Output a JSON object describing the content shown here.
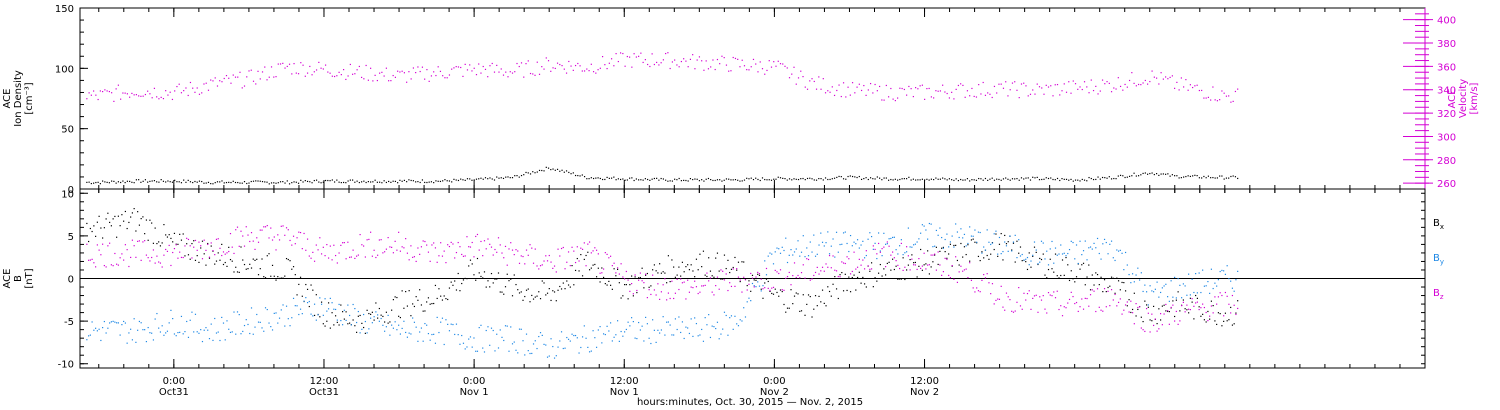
{
  "colors": {
    "black": "#000000",
    "magenta": "#d400d4",
    "blue": "#1e88e5",
    "background": "#ffffff"
  },
  "chart_data": [
    {
      "type": "scatter",
      "panel": "top",
      "ylabel_left": [
        "ACE",
        "Ion Density",
        "[cm⁻³]"
      ],
      "ylabel_right": [
        "ACE",
        "Velocity",
        "[km/s]"
      ],
      "ylim_left": [
        0,
        150
      ],
      "ylim_right": [
        255,
        410
      ],
      "yticks_left": [
        "0",
        "50",
        "100",
        "150"
      ],
      "yticks_right": [
        "260",
        "280",
        "300",
        "320",
        "340",
        "360",
        "380",
        "400"
      ],
      "series": [
        {
          "name": "Ion Density",
          "axis": "left",
          "color": "#000000",
          "x": [
            -6,
            -3,
            0,
            3,
            6,
            9,
            12,
            15,
            18,
            21,
            24,
            27,
            30,
            33,
            36,
            39,
            42,
            45,
            48,
            51,
            54,
            57,
            60,
            63,
            66,
            69,
            72,
            75,
            78,
            80,
            84
          ],
          "y": [
            6,
            7,
            7,
            6,
            6,
            6,
            7,
            7,
            7,
            7,
            8,
            10,
            18,
            10,
            9,
            8,
            8,
            8,
            9,
            9,
            10,
            9,
            9,
            8,
            9,
            9,
            8,
            10,
            14,
            11,
            10
          ]
        },
        {
          "name": "Velocity",
          "axis": "right",
          "color": "#d400d4",
          "x": [
            -6,
            -3,
            0,
            3,
            6,
            9,
            12,
            15,
            18,
            21,
            24,
            27,
            30,
            33,
            36,
            39,
            42,
            45,
            48,
            51,
            54,
            57,
            60,
            63,
            66,
            69,
            72,
            75,
            78,
            80,
            84
          ],
          "y": [
            335,
            340,
            338,
            345,
            350,
            360,
            358,
            355,
            352,
            355,
            358,
            356,
            362,
            360,
            366,
            366,
            364,
            362,
            360,
            346,
            340,
            338,
            338,
            340,
            341,
            340,
            342,
            345,
            352,
            345,
            335
          ]
        }
      ]
    },
    {
      "type": "scatter",
      "panel": "bottom",
      "ylabel_left": [
        "ACE",
        "B",
        "[nT]"
      ],
      "ylim": [
        -10.5,
        10.5
      ],
      "yticks": [
        "-10",
        "-5",
        "0",
        "5",
        "10"
      ],
      "legend": [
        "Bx",
        "By",
        "Bz"
      ],
      "series": [
        {
          "name": "Bx",
          "color": "#000000",
          "x": [
            -6,
            -3,
            0,
            3,
            6,
            9,
            12,
            15,
            18,
            21,
            24,
            27,
            30,
            33,
            36,
            39,
            42,
            45,
            48,
            51,
            54,
            57,
            60,
            63,
            66,
            69,
            72,
            75,
            78,
            80,
            84
          ],
          "y": [
            6,
            7,
            4,
            3,
            2,
            1,
            -4,
            -5,
            -3,
            -2,
            1,
            -1,
            -2,
            2,
            -1,
            1,
            2,
            1,
            -2,
            -3,
            0,
            1,
            2,
            3,
            4,
            2,
            1,
            -1,
            -4,
            -3,
            -4
          ]
        },
        {
          "name": "By",
          "color": "#1e88e5",
          "x": [
            -6,
            -3,
            0,
            3,
            6,
            9,
            12,
            15,
            18,
            21,
            24,
            27,
            30,
            33,
            36,
            39,
            42,
            45,
            48,
            51,
            54,
            57,
            60,
            63,
            66,
            69,
            72,
            75,
            78,
            80,
            84
          ],
          "y": [
            -6,
            -6,
            -5,
            -6,
            -5,
            -4,
            -3,
            -5,
            -6,
            -6,
            -7,
            -7,
            -8,
            -7,
            -6,
            -6,
            -6,
            -5,
            3,
            4,
            4,
            4,
            5,
            5,
            4,
            3,
            3,
            4,
            -2,
            -1,
            0
          ]
        },
        {
          "name": "Bz",
          "color": "#d400d4",
          "x": [
            -6,
            -3,
            0,
            3,
            6,
            9,
            12,
            15,
            18,
            21,
            24,
            27,
            30,
            33,
            36,
            39,
            42,
            45,
            48,
            51,
            54,
            57,
            60,
            63,
            66,
            69,
            72,
            75,
            78,
            80,
            84
          ],
          "y": [
            3,
            3,
            3,
            4,
            5,
            5,
            3,
            4,
            4,
            3,
            4,
            3,
            2,
            3,
            0,
            -1,
            -1,
            0,
            0,
            1,
            2,
            3,
            2,
            1,
            -2,
            -3,
            -3,
            -2,
            -5,
            -4,
            -3
          ]
        }
      ]
    }
  ],
  "x_axis": {
    "range_hours": [
      -7.5,
      100
    ],
    "ticks": [
      {
        "hours": 0,
        "time": "0:00",
        "date": "Oct31"
      },
      {
        "hours": 12,
        "time": "12:00",
        "date": "Oct31"
      },
      {
        "hours": 24,
        "time": "0:00",
        "date": "Nov 1"
      },
      {
        "hours": 36,
        "time": "12:00",
        "date": "Nov 1"
      },
      {
        "hours": 48,
        "time": "0:00",
        "date": "Nov 2"
      },
      {
        "hours": 60,
        "time": "12:00",
        "date": "Nov 2"
      }
    ],
    "title": "hours:minutes, Oct. 30, 2015 — Nov.  2, 2015"
  }
}
